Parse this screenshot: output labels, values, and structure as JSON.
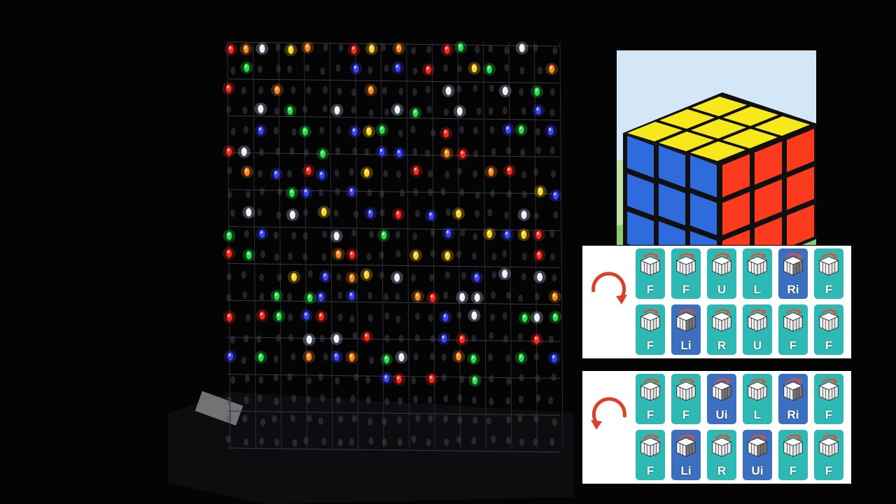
{
  "colors": {
    "background": "#040405",
    "tile_teal": "#2fb9b4",
    "tile_blue": "#3b6fc0",
    "arrow_red": "#d9412a",
    "cube_yellow": "#f7e81c",
    "cube_blue": "#2f6bdc",
    "cube_red": "#fb3a1e"
  },
  "scene": {
    "subject": "led-cube-8x8x8"
  },
  "rubik_photo": {
    "icon": "rubiks-cube-icon"
  },
  "algorithms": [
    {
      "direction_icon": "clockwise-arrow-icon",
      "row1": [
        {
          "label": "F",
          "icon": "cube-rotate-front-icon",
          "style": "teal"
        },
        {
          "label": "F",
          "icon": "cube-rotate-front-icon",
          "style": "teal"
        },
        {
          "label": "U",
          "icon": "cube-turn-up-icon",
          "style": "teal"
        },
        {
          "label": "L",
          "icon": "cube-turn-left-icon",
          "style": "teal"
        },
        {
          "label": "Ri",
          "icon": "cube-turn-right-inverse-icon",
          "style": "blue"
        },
        {
          "label": "F",
          "icon": "cube-rotate-front-icon",
          "style": "teal"
        }
      ],
      "row2": [
        {
          "label": "F",
          "icon": "cube-rotate-front-icon",
          "style": "teal"
        },
        {
          "label": "Li",
          "icon": "cube-turn-left-inverse-icon",
          "style": "blue"
        },
        {
          "label": "R",
          "icon": "cube-turn-right-icon",
          "style": "teal"
        },
        {
          "label": "U",
          "icon": "cube-turn-up-icon",
          "style": "teal"
        },
        {
          "label": "F",
          "icon": "cube-rotate-front-icon",
          "style": "teal"
        },
        {
          "label": "F",
          "icon": "cube-rotate-front-icon",
          "style": "teal"
        }
      ]
    },
    {
      "direction_icon": "counterclockwise-arrow-icon",
      "row1": [
        {
          "label": "F",
          "icon": "cube-rotate-front-icon",
          "style": "teal"
        },
        {
          "label": "F",
          "icon": "cube-rotate-front-icon",
          "style": "teal"
        },
        {
          "label": "Ui",
          "icon": "cube-turn-up-inverse-icon",
          "style": "blue"
        },
        {
          "label": "L",
          "icon": "cube-turn-left-icon",
          "style": "teal"
        },
        {
          "label": "Ri",
          "icon": "cube-turn-right-inverse-icon",
          "style": "blue"
        },
        {
          "label": "F",
          "icon": "cube-rotate-front-icon",
          "style": "teal"
        }
      ],
      "row2": [
        {
          "label": "F",
          "icon": "cube-rotate-front-icon",
          "style": "teal"
        },
        {
          "label": "Li",
          "icon": "cube-turn-left-inverse-icon",
          "style": "blue"
        },
        {
          "label": "R",
          "icon": "cube-turn-right-icon",
          "style": "teal"
        },
        {
          "label": "Ui",
          "icon": "cube-turn-up-inverse-icon",
          "style": "blue"
        },
        {
          "label": "F",
          "icon": "cube-rotate-front-icon",
          "style": "teal"
        },
        {
          "label": "F",
          "icon": "cube-rotate-front-icon",
          "style": "teal"
        }
      ]
    }
  ]
}
